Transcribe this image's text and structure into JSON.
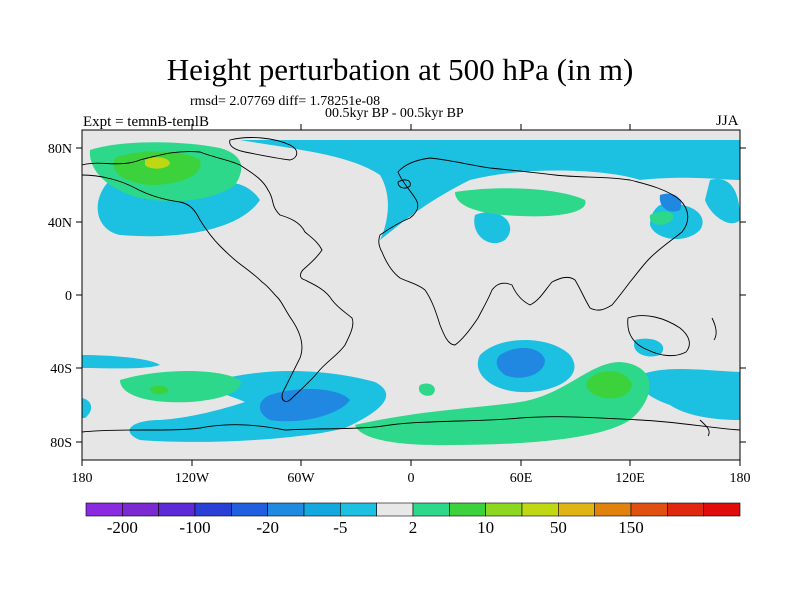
{
  "title": "Height perturbation at 500 hPa (in m)",
  "subtitle_stats": "rmsd= 2.07769 diff= 1.78251e-08",
  "subtitle_period": "00.5kyr BP - 00.5kyr BP",
  "experiment": "Expt = temnB-temlB",
  "season": "JJA",
  "axes": {
    "lat_ticks": [
      "80N",
      "40N",
      "0",
      "40S",
      "80S"
    ],
    "lon_ticks": [
      "180",
      "120W",
      "60W",
      "0",
      "60E",
      "120E",
      "180"
    ]
  },
  "colors": {
    "background_land_ocean": "#e6e6e6",
    "coastline": "#000000"
  },
  "colorbar": {
    "labels": [
      "-200",
      "-100",
      "-20",
      "-5",
      "2",
      "10",
      "50",
      "150"
    ],
    "colors": [
      "#8a2be2",
      "#7a2ad0",
      "#5a2bd6",
      "#2a3fd6",
      "#2060e0",
      "#1e8ae0",
      "#14a8e0",
      "#1cc0e0",
      "#e8e8e8",
      "#2ed88a",
      "#3cd23c",
      "#8cd820",
      "#c0d814",
      "#e0b414",
      "#e0820c",
      "#e05010",
      "#e02810",
      "#e00c0c"
    ]
  },
  "map_data": {
    "projection": "cylindrical-equidistant",
    "lon_range": [
      -180,
      180
    ],
    "lat_range": [
      -90,
      90
    ]
  }
}
